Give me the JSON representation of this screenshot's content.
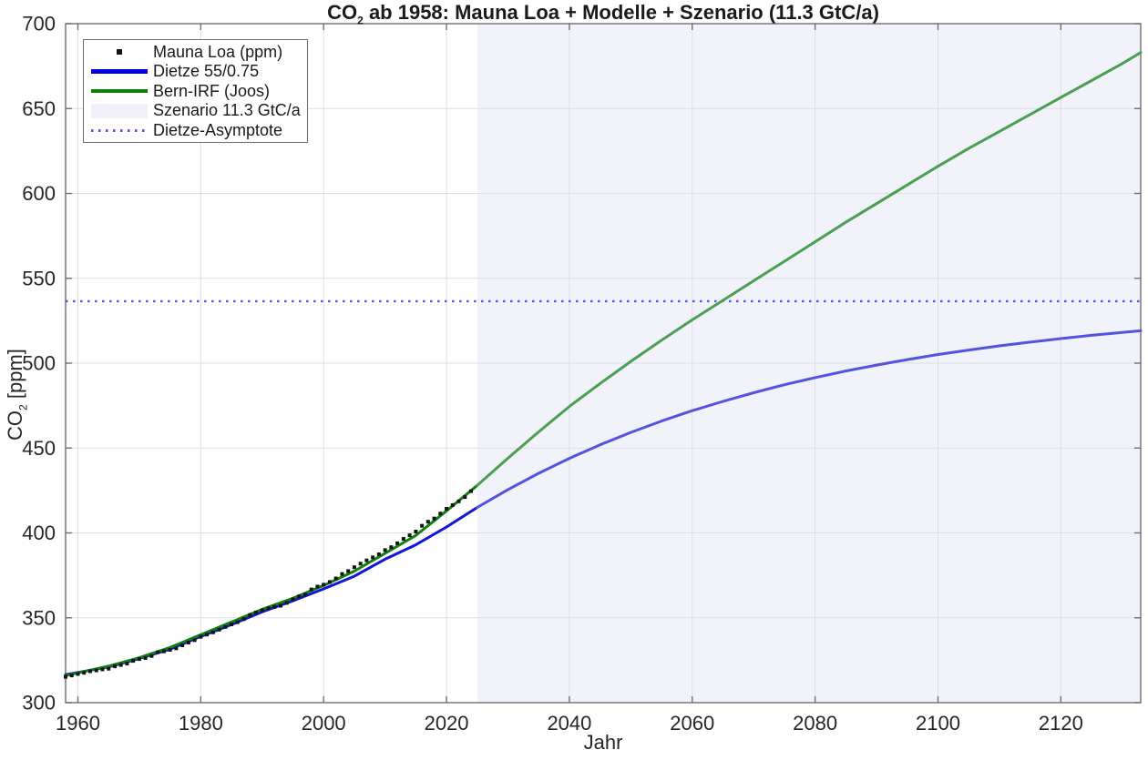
{
  "figure": {
    "title": {
      "prefix": "CO",
      "sub": "2",
      "rest": " ab 1958: Mauna Loa + Modelle + Szenario (11.3 GtC/a)"
    },
    "xlabel": "Jahr",
    "ylabel": {
      "prefix": "CO",
      "sub": "2",
      "rest": " [ppm]"
    }
  },
  "chart_data": {
    "type": "line",
    "title": "CO2 ab 1958: Mauna Loa + Modelle + Szenario (11.3 GtC/a)",
    "xlabel": "Jahr",
    "ylabel": "CO2 [ppm]",
    "axes": {
      "xlim": [
        1958,
        2133
      ],
      "ylim": [
        300,
        700
      ],
      "xticks": [
        1960,
        1980,
        2000,
        2020,
        2040,
        2060,
        2080,
        2100,
        2120
      ],
      "yticks": [
        300,
        350,
        400,
        450,
        500,
        550,
        600,
        650,
        700
      ],
      "grid": true,
      "grid_color": "#dedfe7",
      "spine_color": "#6f6f6f",
      "tick_label_color": "#262626"
    },
    "legend_position": "top-left",
    "scenario_region": {
      "label": "Szenario 11.3 GtC/a",
      "x_start": 2025,
      "x_end": 2133,
      "color": "#f1f2fa"
    },
    "asymptote": {
      "label": "Dietze-Asymptote",
      "value": 536.5,
      "color": "#5656e8",
      "style": "dotted"
    },
    "series": [
      {
        "name": "Mauna Loa (ppm)",
        "type": "scatter",
        "marker": "square",
        "color": "#151515",
        "x_start": 1958,
        "values": [
          315.2,
          316.0,
          316.9,
          317.6,
          318.5,
          319.0,
          319.6,
          320.0,
          321.4,
          322.2,
          323.0,
          324.6,
          325.7,
          326.3,
          327.5,
          329.7,
          330.2,
          331.1,
          332.0,
          333.8,
          335.4,
          336.8,
          338.8,
          340.1,
          341.4,
          343.0,
          344.6,
          346.1,
          347.4,
          349.2,
          351.6,
          353.1,
          354.4,
          355.6,
          356.4,
          357.1,
          358.8,
          360.8,
          362.6,
          363.7,
          366.7,
          368.4,
          369.5,
          371.1,
          373.2,
          375.8,
          377.5,
          379.8,
          381.9,
          383.8,
          385.6,
          387.4,
          389.9,
          391.6,
          393.9,
          396.5,
          398.6,
          400.8,
          404.2,
          406.6,
          408.5,
          411.4,
          414.2,
          416.4,
          418.6,
          421.1,
          424.6
        ]
      },
      {
        "name": "Dietze 55/0.75",
        "type": "line",
        "split_year": 2025,
        "color_history": "#1515d8",
        "color_projection": "#5353e0",
        "points": [
          [
            1958,
            316.5
          ],
          [
            1965,
            321.0
          ],
          [
            1970,
            326.0
          ],
          [
            1975,
            331.5
          ],
          [
            1980,
            339.0
          ],
          [
            1985,
            346.0
          ],
          [
            1990,
            353.5
          ],
          [
            1995,
            360.0
          ],
          [
            2000,
            367.0
          ],
          [
            2005,
            374.5
          ],
          [
            2010,
            384.5
          ],
          [
            2015,
            393.0
          ],
          [
            2020,
            403.5
          ],
          [
            2025,
            415.0
          ],
          [
            2030,
            425.5
          ],
          [
            2035,
            435.1
          ],
          [
            2040,
            443.9
          ],
          [
            2045,
            451.9
          ],
          [
            2050,
            459.2
          ],
          [
            2055,
            465.9
          ],
          [
            2060,
            472.0
          ],
          [
            2065,
            477.5
          ],
          [
            2070,
            482.6
          ],
          [
            2075,
            487.3
          ],
          [
            2080,
            491.5
          ],
          [
            2085,
            495.4
          ],
          [
            2090,
            498.9
          ],
          [
            2095,
            502.1
          ],
          [
            2100,
            505.1
          ],
          [
            2105,
            507.7
          ],
          [
            2110,
            510.2
          ],
          [
            2115,
            512.4
          ],
          [
            2120,
            514.5
          ],
          [
            2125,
            516.4
          ],
          [
            2130,
            518.1
          ],
          [
            2133,
            519.1
          ]
        ]
      },
      {
        "name": "Bern-IRF (Joos)",
        "type": "line",
        "split_year": 2025,
        "color_history": "#0e810e",
        "color_projection": "#4aa04f",
        "points": [
          [
            1958,
            315.9
          ],
          [
            1965,
            321.5
          ],
          [
            1970,
            326.5
          ],
          [
            1975,
            332.5
          ],
          [
            1980,
            340.0
          ],
          [
            1985,
            347.5
          ],
          [
            1990,
            355.0
          ],
          [
            1995,
            361.5
          ],
          [
            2000,
            369.0
          ],
          [
            2005,
            377.5
          ],
          [
            2010,
            388.0
          ],
          [
            2015,
            398.5
          ],
          [
            2020,
            413.0
          ],
          [
            2025,
            428.0
          ],
          [
            2030,
            444.0
          ],
          [
            2035,
            459.5
          ],
          [
            2040,
            474.5
          ],
          [
            2045,
            488.0
          ],
          [
            2050,
            501.0
          ],
          [
            2055,
            513.5
          ],
          [
            2060,
            525.5
          ],
          [
            2065,
            537.0
          ],
          [
            2070,
            548.5
          ],
          [
            2075,
            560.0
          ],
          [
            2080,
            571.5
          ],
          [
            2085,
            583.0
          ],
          [
            2090,
            594.0
          ],
          [
            2095,
            605.0
          ],
          [
            2100,
            616.0
          ],
          [
            2105,
            626.5
          ],
          [
            2110,
            636.5
          ],
          [
            2115,
            646.5
          ],
          [
            2120,
            656.5
          ],
          [
            2125,
            666.5
          ],
          [
            2130,
            676.5
          ],
          [
            2133,
            683.0
          ]
        ]
      }
    ],
    "legend": [
      {
        "label": "Mauna Loa (ppm)",
        "swatch": "marker",
        "color": "#151515"
      },
      {
        "label": "Dietze 55/0.75",
        "swatch": "line",
        "color": "#0000e0"
      },
      {
        "label": "Bern-IRF (Joos)",
        "swatch": "line",
        "color": "#0b7d0b"
      },
      {
        "label": "Szenario 11.3 GtC/a",
        "swatch": "patch",
        "color": "#eff0f9"
      },
      {
        "label": "Dietze-Asymptote",
        "swatch": "dotted",
        "color": "#5656e8"
      }
    ]
  }
}
